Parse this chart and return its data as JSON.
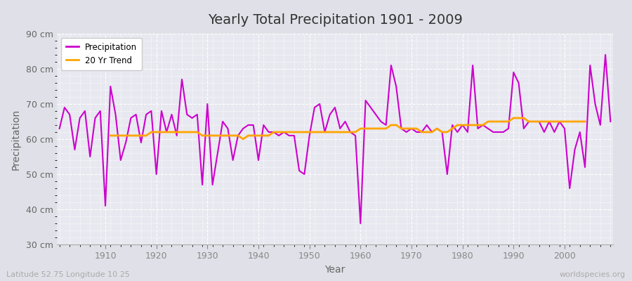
{
  "title": "Yearly Total Precipitation 1901 - 2009",
  "xlabel": "Year",
  "ylabel": "Precipitation",
  "subtitle_left": "Latitude 52.75 Longitude 10.25",
  "subtitle_right": "worldspecies.org",
  "bg_color": "#e0e0e8",
  "plot_bg_color": "#e8e8f0",
  "grid_color": "#ffffff",
  "precip_color": "#cc00cc",
  "trend_color": "#ffa500",
  "ylim": [
    30,
    90
  ],
  "yticks": [
    30,
    40,
    50,
    60,
    70,
    80,
    90
  ],
  "years": [
    1901,
    1902,
    1903,
    1904,
    1905,
    1906,
    1907,
    1908,
    1909,
    1910,
    1911,
    1912,
    1913,
    1914,
    1915,
    1916,
    1917,
    1918,
    1919,
    1920,
    1921,
    1922,
    1923,
    1924,
    1925,
    1926,
    1927,
    1928,
    1929,
    1930,
    1931,
    1932,
    1933,
    1934,
    1935,
    1936,
    1937,
    1938,
    1939,
    1940,
    1941,
    1942,
    1943,
    1944,
    1945,
    1946,
    1947,
    1948,
    1949,
    1950,
    1951,
    1952,
    1953,
    1954,
    1955,
    1956,
    1957,
    1958,
    1959,
    1960,
    1961,
    1962,
    1963,
    1964,
    1965,
    1966,
    1967,
    1968,
    1969,
    1970,
    1971,
    1972,
    1973,
    1974,
    1975,
    1976,
    1977,
    1978,
    1979,
    1980,
    1981,
    1982,
    1983,
    1984,
    1985,
    1986,
    1987,
    1988,
    1989,
    1990,
    1991,
    1992,
    1993,
    1994,
    1995,
    1996,
    1997,
    1998,
    1999,
    2000,
    2001,
    2002,
    2003,
    2004,
    2005,
    2006,
    2007,
    2008,
    2009
  ],
  "precip": [
    63,
    69,
    67,
    57,
    66,
    68,
    55,
    66,
    68,
    41,
    75,
    67,
    54,
    59,
    66,
    67,
    59,
    67,
    68,
    50,
    68,
    62,
    67,
    61,
    77,
    67,
    66,
    67,
    47,
    70,
    47,
    56,
    65,
    63,
    54,
    61,
    63,
    64,
    64,
    54,
    64,
    62,
    62,
    61,
    62,
    61,
    61,
    51,
    50,
    61,
    69,
    70,
    62,
    67,
    69,
    63,
    65,
    62,
    61,
    36,
    71,
    69,
    67,
    65,
    64,
    81,
    75,
    63,
    62,
    63,
    62,
    62,
    64,
    62,
    63,
    62,
    50,
    64,
    62,
    64,
    62,
    81,
    63,
    64,
    63,
    62,
    62,
    62,
    63,
    79,
    76,
    63,
    65,
    65,
    65,
    62,
    65,
    62,
    65,
    63,
    46,
    57,
    62,
    52,
    81,
    70,
    64,
    84,
    65
  ],
  "trend": [
    null,
    null,
    null,
    null,
    null,
    null,
    null,
    null,
    null,
    null,
    61,
    61,
    61,
    61,
    61,
    61,
    61,
    61,
    62,
    62,
    62,
    62,
    62,
    62,
    62,
    62,
    62,
    62,
    61,
    61,
    61,
    61,
    61,
    61,
    61,
    61,
    60,
    61,
    61,
    61,
    61,
    61,
    62,
    62,
    62,
    62,
    62,
    62,
    62,
    62,
    62,
    62,
    62,
    62,
    62,
    62,
    62,
    62,
    62,
    63,
    63,
    63,
    63,
    63,
    63,
    64,
    64,
    63,
    63,
    63,
    63,
    62,
    62,
    62,
    63,
    62,
    62,
    63,
    64,
    64,
    64,
    64,
    64,
    64,
    65,
    65,
    65,
    65,
    65,
    66,
    66,
    66,
    65,
    65,
    65,
    65,
    65,
    65,
    65,
    65,
    65,
    65,
    65,
    65,
    null,
    null,
    null,
    null,
    null
  ]
}
